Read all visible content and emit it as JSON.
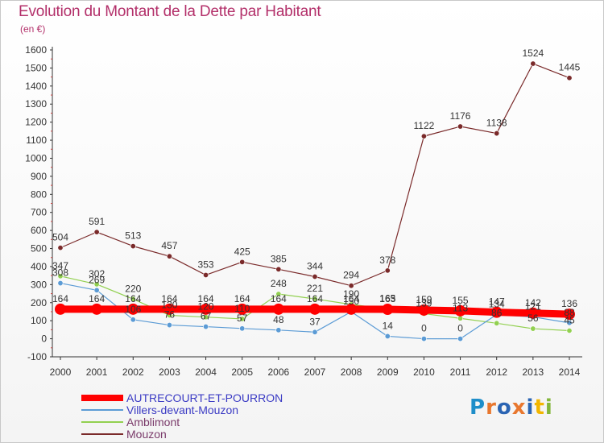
{
  "page": {
    "title": "Evolution du Montant de la Dette par Habitant",
    "subtitle": "(en €)"
  },
  "chart_data": {
    "type": "line",
    "title": "Evolution du Montant de la Dette par Habitant",
    "subtitle": "(en €)",
    "xlabel": "",
    "ylabel": "",
    "x": [
      2000,
      2001,
      2002,
      2003,
      2004,
      2005,
      2006,
      2007,
      2008,
      2009,
      2010,
      2011,
      2012,
      2013,
      2014
    ],
    "ylim": [
      -100,
      1600
    ],
    "yticks": [
      -100,
      0,
      100,
      200,
      300,
      400,
      500,
      600,
      700,
      800,
      900,
      1000,
      1100,
      1200,
      1300,
      1400,
      1500,
      1600
    ],
    "grid": false,
    "legend_position": "bottom-left",
    "series": [
      {
        "name": "AUTRECOURT-ET-POURRON",
        "color": "#ff0000",
        "values": [
          164,
          164,
          164,
          164,
          164,
          164,
          164,
          164,
          164,
          163,
          159,
          155,
          147,
          142,
          136
        ],
        "labels": [
          "164",
          "164",
          "164",
          "164",
          "164",
          "164",
          "164",
          "164",
          "164",
          "163",
          "159",
          "155",
          "147",
          "142",
          "136"
        ]
      },
      {
        "name": "Villers-devant-Mouzon",
        "color": "#5b9bd5",
        "values": [
          308,
          269,
          106,
          76,
          67,
          57,
          48,
          37,
          150,
          14,
          0,
          0,
          134,
          121,
          88
        ],
        "labels": [
          "308",
          "269",
          "106",
          "76",
          "67",
          "57",
          "48",
          "37",
          "150",
          "14",
          "0",
          "0",
          "134",
          "121",
          "88"
        ]
      },
      {
        "name": "Amblimont",
        "color": "#92d050",
        "values": [
          347,
          302,
          220,
          130,
          120,
          110,
          248,
          221,
          190,
          165,
          139,
          113,
          86,
          56,
          45
        ],
        "labels": [
          "347",
          "302",
          "220",
          "130",
          "120",
          "110",
          "248",
          "221",
          "190",
          "165",
          "139",
          "113",
          "86",
          "56",
          "45"
        ]
      },
      {
        "name": "Mouzon",
        "color": "#7a2a2a",
        "values": [
          504,
          591,
          513,
          457,
          353,
          425,
          385,
          344,
          294,
          378,
          1122,
          1176,
          1138,
          1524,
          1445
        ],
        "labels": [
          "504",
          "591",
          "513",
          "457",
          "353",
          "425",
          "385",
          "344",
          "294",
          "378",
          "1122",
          "1176",
          "1138",
          "1524",
          "1445"
        ]
      }
    ]
  },
  "logo": {
    "text": "Proxiti",
    "letters": [
      "P",
      "r",
      "o",
      "x",
      "i",
      "t",
      "i"
    ],
    "colors": [
      "#1f8ec9",
      "#e8772e",
      "#2a64b3",
      "#e8772e",
      "#2a64b3",
      "#f2b600",
      "#83b63b"
    ]
  }
}
